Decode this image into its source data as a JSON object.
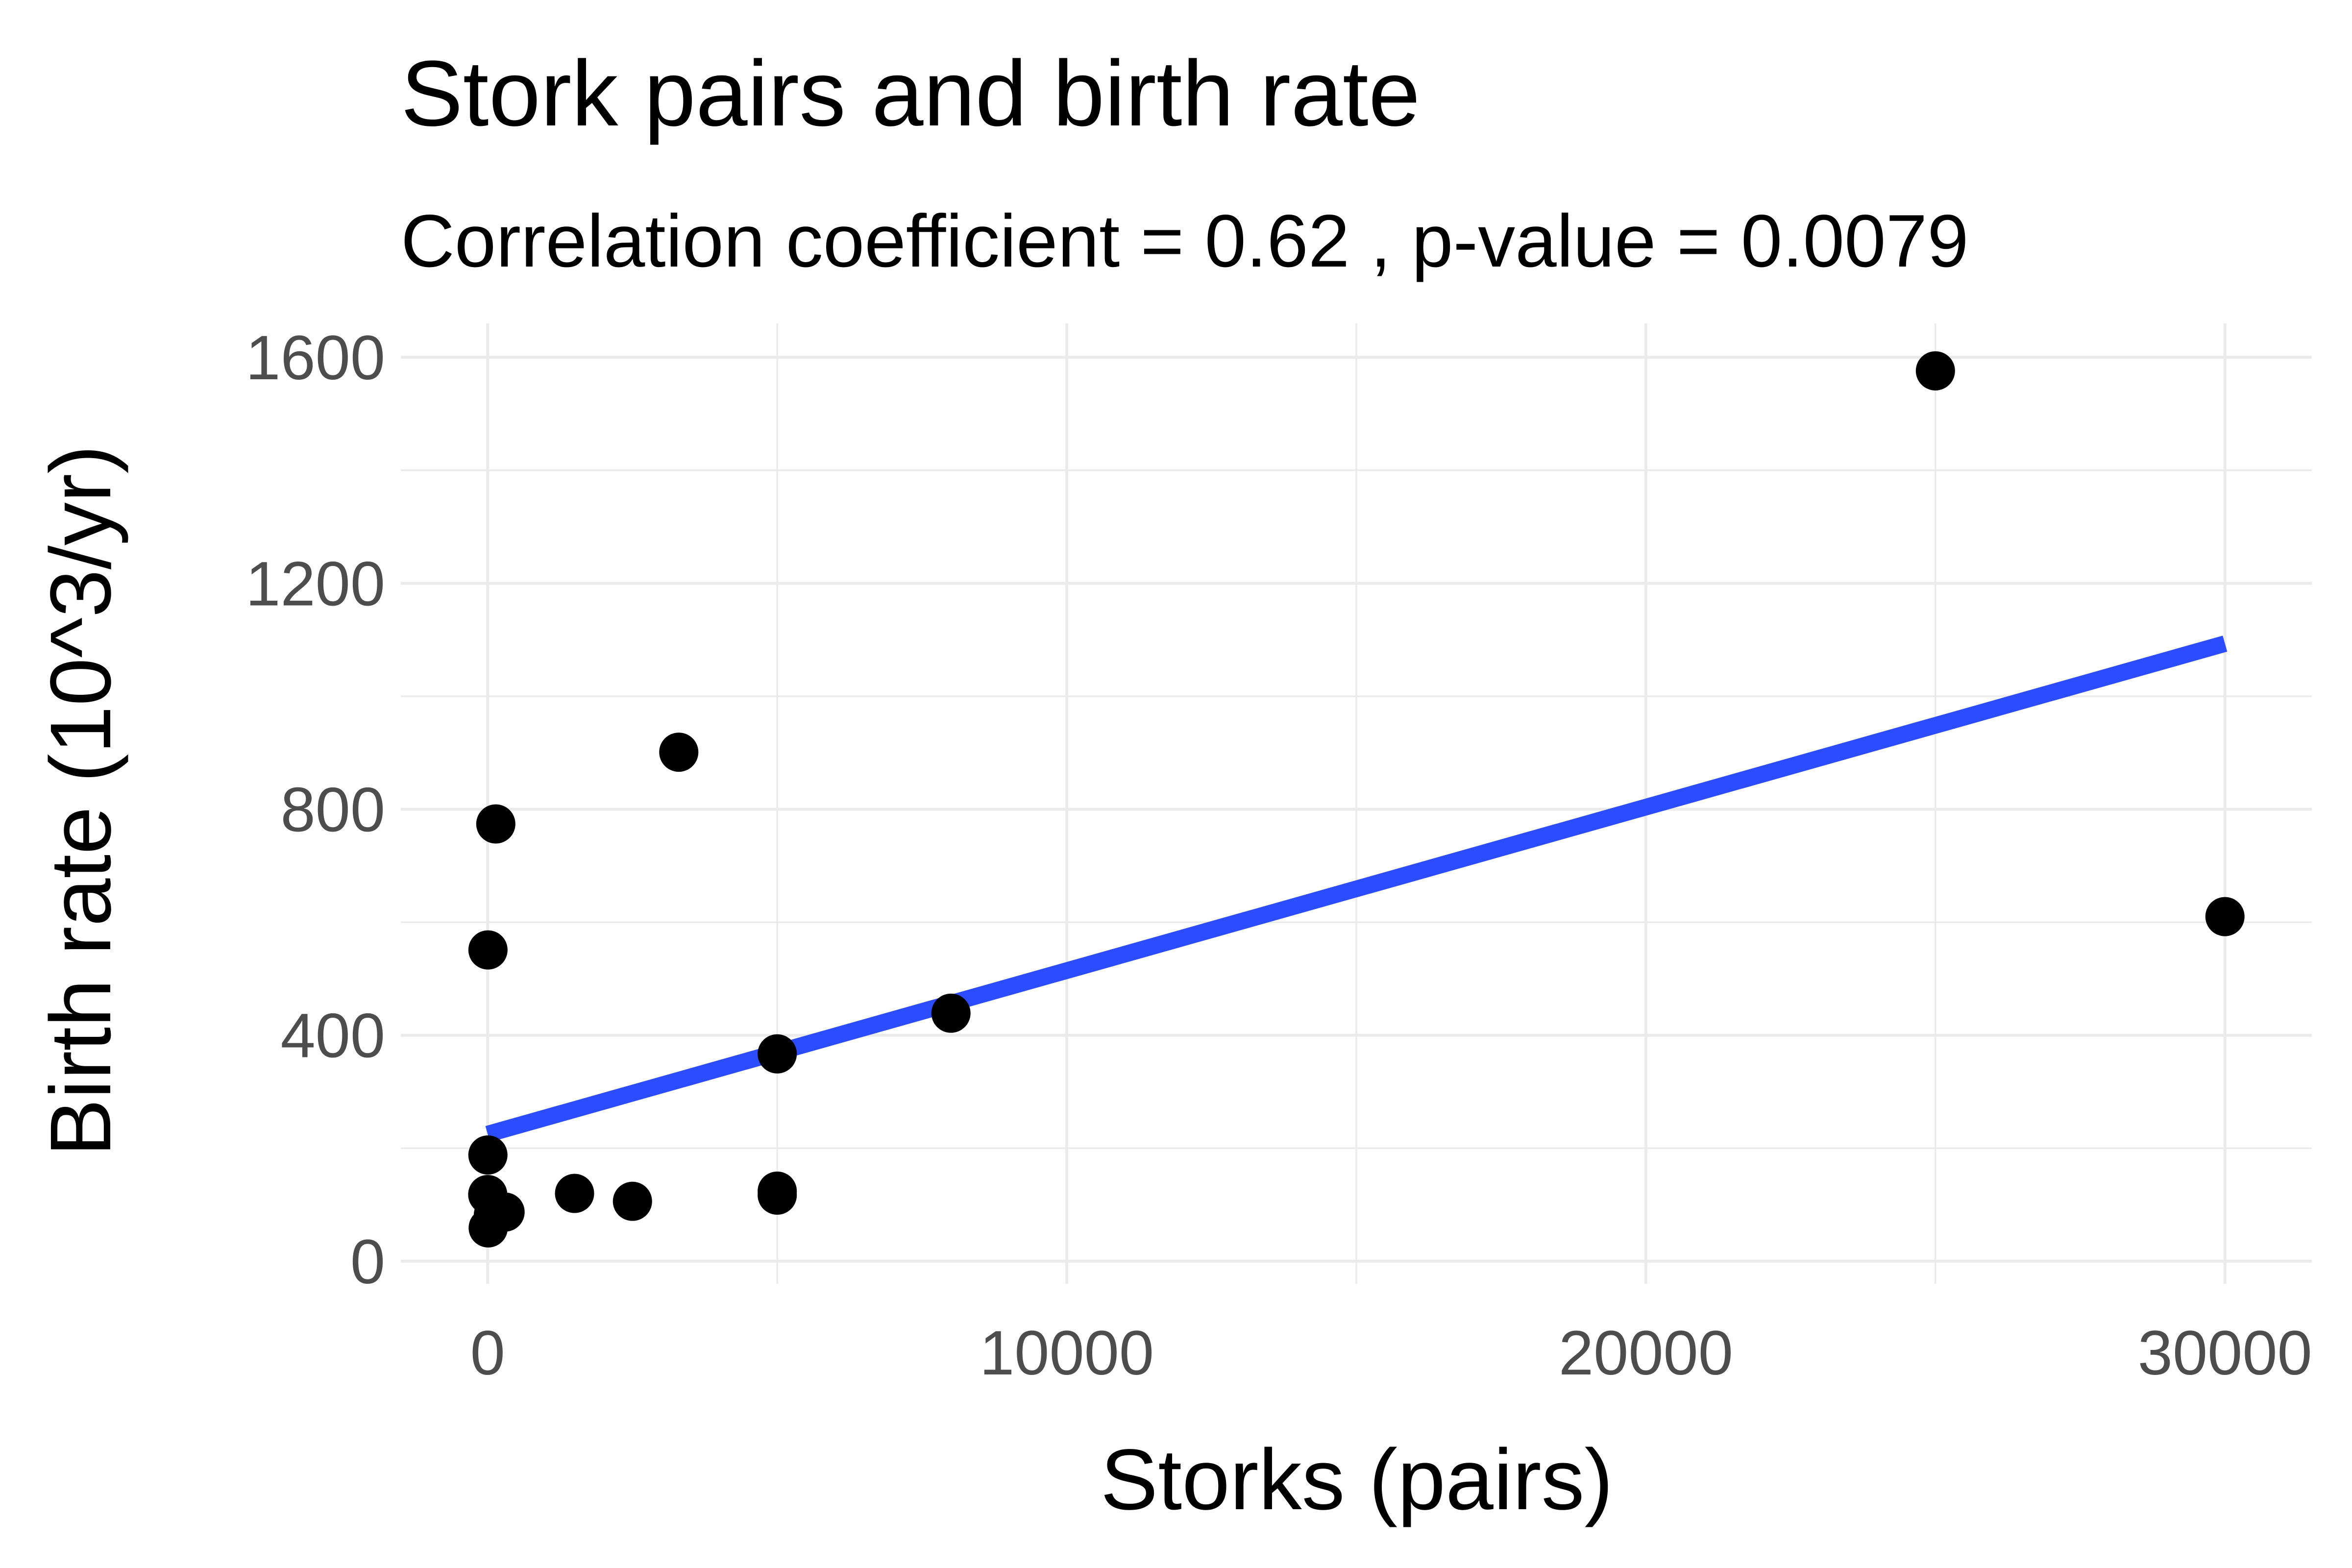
{
  "chart_data": {
    "type": "scatter",
    "title": "Stork pairs and birth rate",
    "subtitle": "Correlation coefficient = 0.62 , p-value = 0.0079",
    "xlabel": "Storks (pairs)",
    "ylabel": "Birth rate (10^3/yr)",
    "xlim": [
      -1500,
      31500
    ],
    "ylim": [
      -40,
      1660
    ],
    "x_ticks": [
      0,
      10000,
      20000,
      30000
    ],
    "x_tick_labels": [
      "0",
      "10000",
      "20000",
      "30000"
    ],
    "y_ticks": [
      0,
      400,
      800,
      1200,
      1600
    ],
    "y_tick_labels": [
      "0",
      "400",
      "800",
      "1200",
      "1600"
    ],
    "grid": true,
    "points": [
      {
        "x": 100,
        "y": 83
      },
      {
        "x": 300,
        "y": 87
      },
      {
        "x": 1,
        "y": 118
      },
      {
        "x": 5000,
        "y": 117
      },
      {
        "x": 9,
        "y": 59
      },
      {
        "x": 140,
        "y": 774
      },
      {
        "x": 3300,
        "y": 901
      },
      {
        "x": 2500,
        "y": 106
      },
      {
        "x": 4,
        "y": 188
      },
      {
        "x": 5000,
        "y": 124
      },
      {
        "x": 5,
        "y": 551
      },
      {
        "x": 30000,
        "y": 610
      },
      {
        "x": 1500,
        "y": 120
      },
      {
        "x": 5000,
        "y": 367
      },
      {
        "x": 8000,
        "y": 439
      },
      {
        "x": 150,
        "y": 82
      },
      {
        "x": 25000,
        "y": 1576
      }
    ],
    "trend_line": {
      "x": [
        0,
        30000
      ],
      "y": [
        225.03,
        1093.13
      ]
    },
    "colors": {
      "points": "#000000",
      "trend_line": "#2c4cff"
    }
  }
}
